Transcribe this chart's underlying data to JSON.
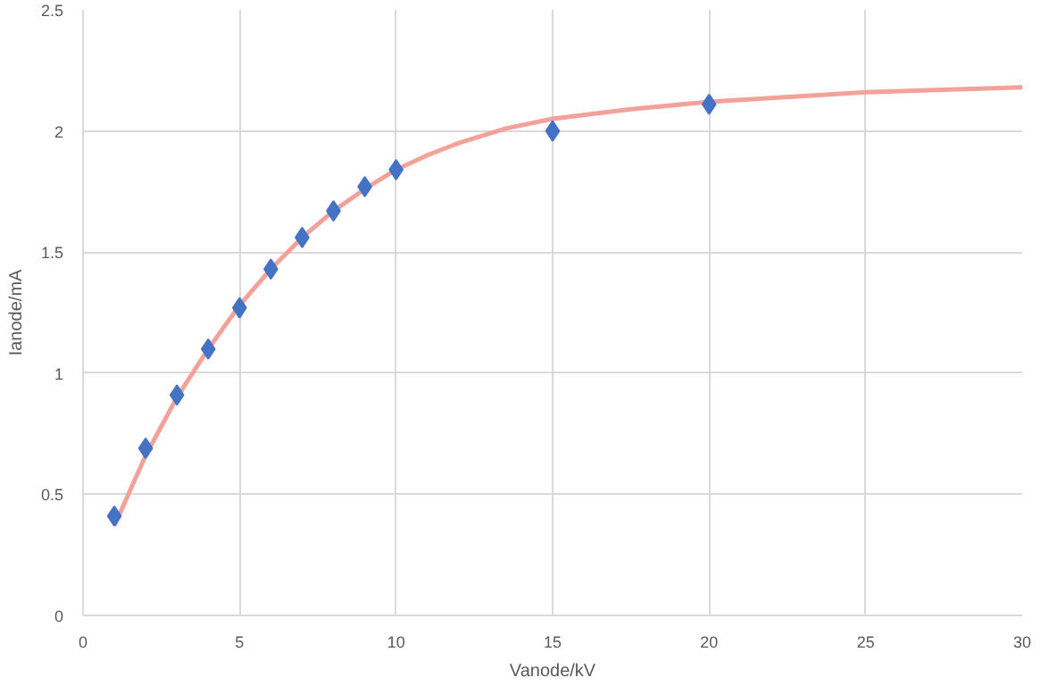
{
  "chart_data": {
    "type": "scatter",
    "xlabel": "Vanode/kV",
    "ylabel": "Ianode/mA",
    "xlim": [
      0,
      30
    ],
    "ylim": [
      0,
      2.5
    ],
    "xticks": [
      0,
      5,
      10,
      15,
      20,
      25,
      30
    ],
    "yticks": [
      0,
      0.5,
      1,
      1.5,
      2,
      2.5
    ],
    "grid": true,
    "series": [
      {
        "type": "line",
        "color": "#f4a19a",
        "marker": "none",
        "x": [
          1,
          2,
          3,
          4,
          5,
          6,
          7,
          8,
          9,
          10,
          11,
          12,
          13.5,
          15,
          17.5,
          20,
          25,
          30
        ],
        "values": [
          0.37,
          0.66,
          0.9,
          1.1,
          1.28,
          1.43,
          1.56,
          1.67,
          1.76,
          1.84,
          1.9,
          1.95,
          2.01,
          2.05,
          2.09,
          2.12,
          2.16,
          2.18
        ]
      },
      {
        "color": "#4472c4",
        "marker": "diamond",
        "x": [
          1,
          2,
          3,
          4,
          5,
          6,
          7,
          8,
          9,
          10,
          15,
          20
        ],
        "values": [
          0.41,
          0.69,
          0.91,
          1.1,
          1.27,
          1.43,
          1.56,
          1.67,
          1.77,
          1.84,
          2.0,
          2.11
        ]
      }
    ]
  }
}
